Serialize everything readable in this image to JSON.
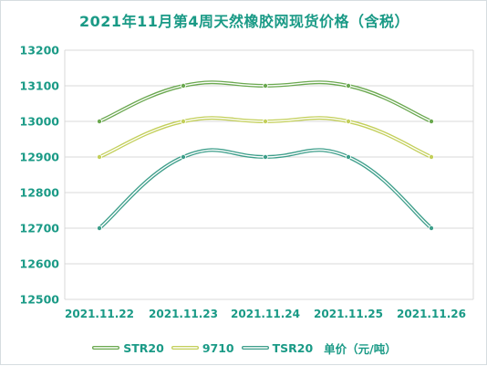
{
  "chart_data": {
    "type": "line",
    "title": "2021年11月第4周天然橡胶网现货价格（含税）",
    "categories": [
      "2021.11.22",
      "2021.11.23",
      "2021.11.24",
      "2021.11.25",
      "2021.11.26"
    ],
    "series": [
      {
        "name": "STR20",
        "values": [
          13000,
          13100,
          13100,
          13100,
          13000
        ],
        "color": "#6aa84f"
      },
      {
        "name": "9710",
        "values": [
          12900,
          13000,
          13000,
          13000,
          12900
        ],
        "color": "#c3cf5a"
      },
      {
        "name": "TSR20",
        "values": [
          12700,
          12900,
          12900,
          12900,
          12700
        ],
        "color": "#3d9e8a"
      }
    ],
    "ylim": [
      12500,
      13200
    ],
    "yticks": [
      12500,
      12600,
      12700,
      12800,
      12900,
      13000,
      13100,
      13200
    ],
    "grid": true,
    "legend_position": "bottom",
    "unit_label": "单价（元/吨）",
    "text_color": "#1a9a86",
    "grid_color": "#d9d9d9"
  }
}
